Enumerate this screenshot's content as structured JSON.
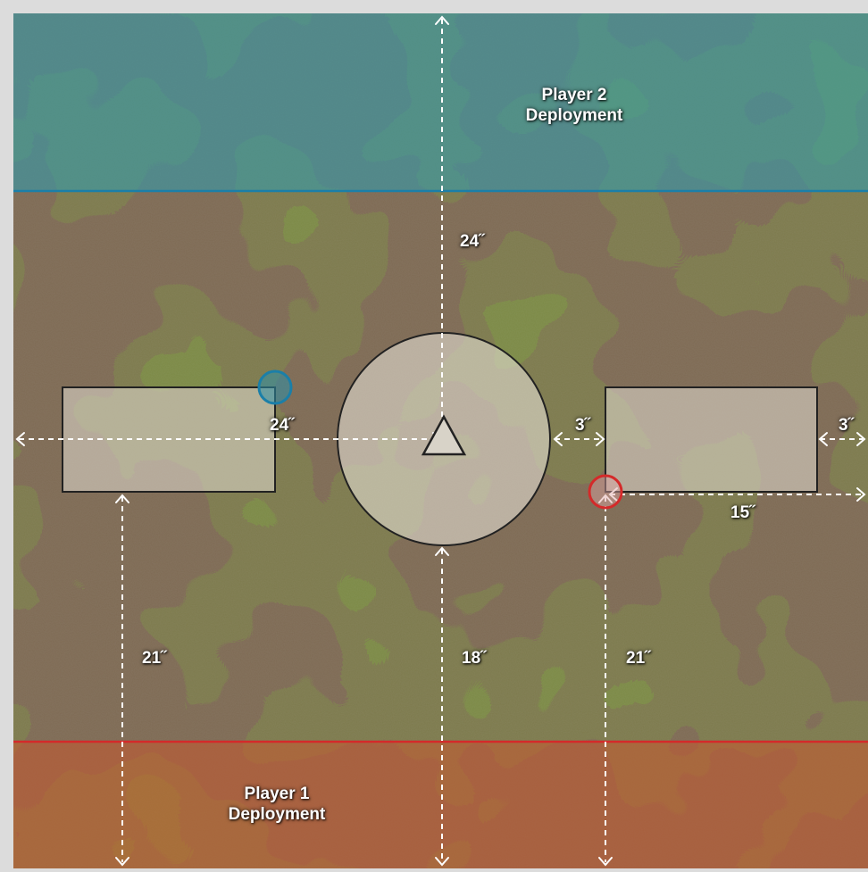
{
  "deployment": {
    "player2_line1": "Player 2",
    "player2_line2": "Deployment",
    "player1_line1": "Player 1",
    "player1_line2": "Deployment"
  },
  "colors": {
    "player1": "#d42a2a",
    "player2": "#1b7fa8",
    "terrain_outline": "#222222",
    "measure_line": "#ffffff"
  },
  "measurements": {
    "center_top": "24˝",
    "center_bottom": "18˝",
    "left_rect_to_center": "24˝",
    "left_bottom": "21˝",
    "right_bottom": "21˝",
    "circle_to_right_rect": "3˝",
    "right_rect_to_edge": "3˝",
    "right_edge_span": "15˝"
  },
  "icons": {
    "objective": "triangle-icon",
    "player1_marker": "red-circle-marker",
    "player2_marker": "blue-circle-marker"
  }
}
